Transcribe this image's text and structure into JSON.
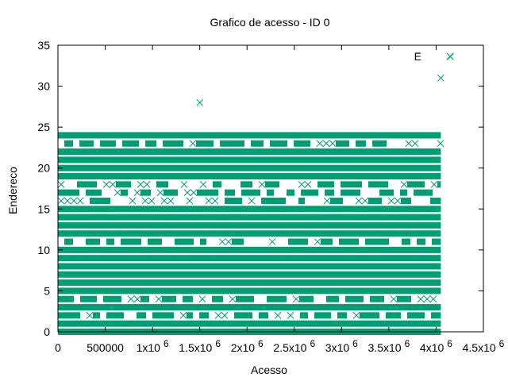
{
  "chart_data": {
    "type": "scatter",
    "title": "Grafico de acesso - ID 0",
    "xlabel": "Acesso",
    "ylabel": "Endereco",
    "xlim": [
      0,
      4500000
    ],
    "ylim": [
      0,
      35
    ],
    "grid": false,
    "legend": "top-right",
    "x_ticks": [
      {
        "value": 0,
        "label": "0",
        "exp": ""
      },
      {
        "value": 500000,
        "label": "500000",
        "exp": ""
      },
      {
        "value": 1000000,
        "label": "1x10",
        "exp": "6"
      },
      {
        "value": 1500000,
        "label": "1.5x10",
        "exp": "6"
      },
      {
        "value": 2000000,
        "label": "2x10",
        "exp": "6"
      },
      {
        "value": 2500000,
        "label": "2.5x10",
        "exp": "6"
      },
      {
        "value": 3000000,
        "label": "3x10",
        "exp": "6"
      },
      {
        "value": 3500000,
        "label": "3.5x10",
        "exp": "6"
      },
      {
        "value": 4000000,
        "label": "4x10",
        "exp": "6"
      },
      {
        "value": 4500000,
        "label": "4.5x10",
        "exp": "6"
      }
    ],
    "y_ticks": [
      0,
      5,
      10,
      15,
      20,
      25,
      30,
      35
    ],
    "series": [
      {
        "name": "E",
        "color": "#009e73",
        "marker": "x",
        "dense_bands": [
          {
            "y": 0,
            "x": [
              0,
              4050000
            ]
          },
          {
            "y": 1,
            "x": [
              0,
              4050000
            ]
          },
          {
            "y": 3,
            "x": [
              0,
              4050000
            ]
          },
          {
            "y": 5,
            "x": [
              0,
              4050000
            ]
          },
          {
            "y": 6,
            "x": [
              0,
              4050000
            ]
          },
          {
            "y": 7,
            "x": [
              0,
              4050000
            ]
          },
          {
            "y": 8,
            "x": [
              0,
              4050000
            ]
          },
          {
            "y": 9,
            "x": [
              0,
              4050000
            ]
          },
          {
            "y": 10,
            "x": [
              0,
              4050000
            ]
          },
          {
            "y": 12,
            "x": [
              0,
              4050000
            ]
          },
          {
            "y": 13,
            "x": [
              0,
              4050000
            ]
          },
          {
            "y": 14,
            "x": [
              0,
              4050000
            ]
          },
          {
            "y": 15,
            "x": [
              0,
              4050000
            ]
          },
          {
            "y": 19,
            "x": [
              0,
              4050000
            ]
          },
          {
            "y": 20,
            "x": [
              0,
              4050000
            ]
          },
          {
            "y": 21,
            "x": [
              0,
              4050000
            ]
          },
          {
            "y": 22,
            "x": [
              0,
              4050000
            ]
          },
          {
            "y": 24,
            "x": [
              0,
              4050000
            ]
          }
        ],
        "partial_bands": [
          {
            "y": 2,
            "x": [
              0,
              4050000
            ],
            "density": 0.85
          },
          {
            "y": 4,
            "x": [
              0,
              4050000
            ],
            "density": 0.55
          },
          {
            "y": 11,
            "x": [
              0,
              4050000
            ],
            "density": 0.5
          },
          {
            "y": 16,
            "x": [
              0,
              4050000
            ],
            "density": 0.25
          },
          {
            "y": 17,
            "x": [
              0,
              4050000
            ],
            "density": 0.55
          },
          {
            "y": 18,
            "x": [
              0,
              4050000
            ],
            "density": 0.35
          },
          {
            "y": 23,
            "x": [
              0,
              4050000
            ],
            "density": 0.6
          }
        ],
        "outliers": [
          {
            "x": 1500000,
            "y": 28
          },
          {
            "x": 4050000,
            "y": 31
          },
          {
            "x": 4150000,
            "y": 33.6
          }
        ]
      }
    ]
  }
}
